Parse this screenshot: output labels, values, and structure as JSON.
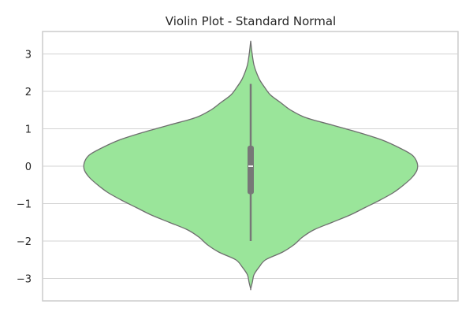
{
  "chart_data": {
    "type": "violin",
    "title": "Violin Plot - Standard Normal",
    "xlabel": "",
    "ylabel": "",
    "ylim": [
      -3.6,
      3.6
    ],
    "yticks": [
      -3,
      -2,
      -1,
      0,
      1,
      2,
      3
    ],
    "ytick_labels": [
      "−3",
      "−2",
      "−1",
      "0",
      "1",
      "2",
      "3"
    ],
    "grid": true,
    "colors": {
      "violin_fill": "#9ae59a",
      "violin_edge": "#6e6e6e",
      "box": "#777777",
      "median": "#ffffff"
    },
    "violin": {
      "density_profile": [
        {
          "y": -3.28,
          "w": 0.0
        },
        {
          "y": -3.1,
          "w": 0.01
        },
        {
          "y": -2.9,
          "w": 0.02
        },
        {
          "y": -2.7,
          "w": 0.05
        },
        {
          "y": -2.5,
          "w": 0.09
        },
        {
          "y": -2.3,
          "w": 0.19
        },
        {
          "y": -2.1,
          "w": 0.26
        },
        {
          "y": -1.9,
          "w": 0.31
        },
        {
          "y": -1.7,
          "w": 0.38
        },
        {
          "y": -1.5,
          "w": 0.49
        },
        {
          "y": -1.3,
          "w": 0.6
        },
        {
          "y": -1.1,
          "w": 0.69
        },
        {
          "y": -0.9,
          "w": 0.78
        },
        {
          "y": -0.7,
          "w": 0.86
        },
        {
          "y": -0.5,
          "w": 0.92
        },
        {
          "y": -0.3,
          "w": 0.97
        },
        {
          "y": -0.1,
          "w": 1.0
        },
        {
          "y": 0.1,
          "w": 1.0
        },
        {
          "y": 0.3,
          "w": 0.97
        },
        {
          "y": 0.5,
          "w": 0.89
        },
        {
          "y": 0.7,
          "w": 0.79
        },
        {
          "y": 0.9,
          "w": 0.65
        },
        {
          "y": 1.1,
          "w": 0.49
        },
        {
          "y": 1.3,
          "w": 0.33
        },
        {
          "y": 1.5,
          "w": 0.24
        },
        {
          "y": 1.7,
          "w": 0.18
        },
        {
          "y": 1.9,
          "w": 0.12
        },
        {
          "y": 2.1,
          "w": 0.085
        },
        {
          "y": 2.3,
          "w": 0.055
        },
        {
          "y": 2.5,
          "w": 0.035
        },
        {
          "y": 2.7,
          "w": 0.02
        },
        {
          "y": 2.9,
          "w": 0.012
        },
        {
          "y": 3.1,
          "w": 0.006
        },
        {
          "y": 3.35,
          "w": 0.0
        }
      ],
      "whisker_low": -2.0,
      "whisker_high": 2.2,
      "q1": -0.75,
      "q3": 0.55,
      "median": 0.0
    }
  }
}
